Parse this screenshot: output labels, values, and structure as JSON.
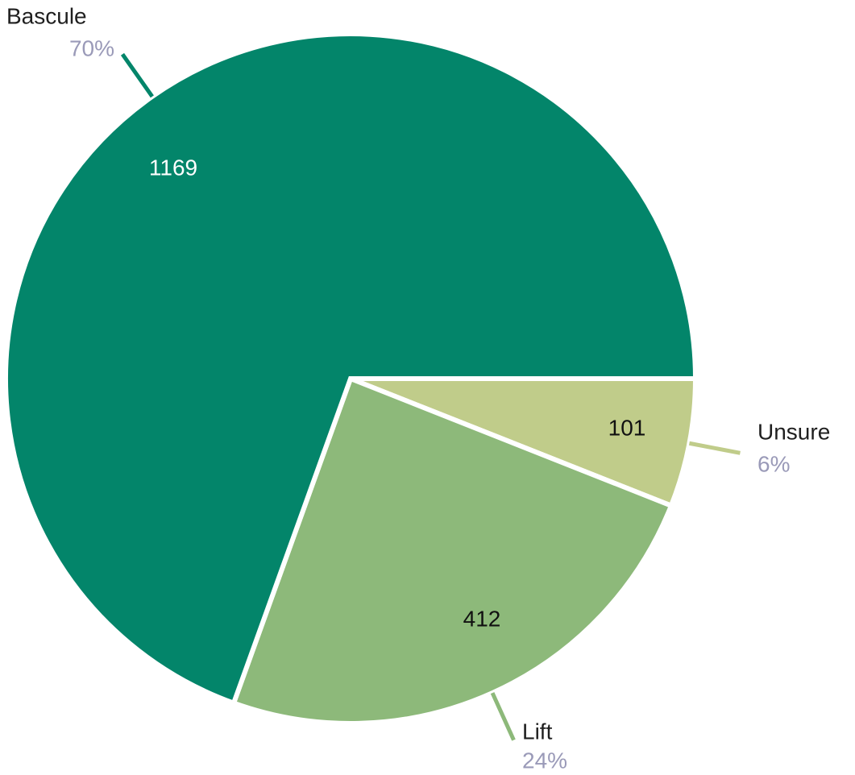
{
  "chart_data": {
    "type": "pie",
    "categories": [
      "Bascule",
      "Lift",
      "Unsure"
    ],
    "values": [
      1169,
      412,
      101
    ],
    "percent_labels": [
      "70%",
      "24%",
      "6%"
    ],
    "colors": [
      "#03856a",
      "#8db97a",
      "#c0cc8a"
    ]
  }
}
